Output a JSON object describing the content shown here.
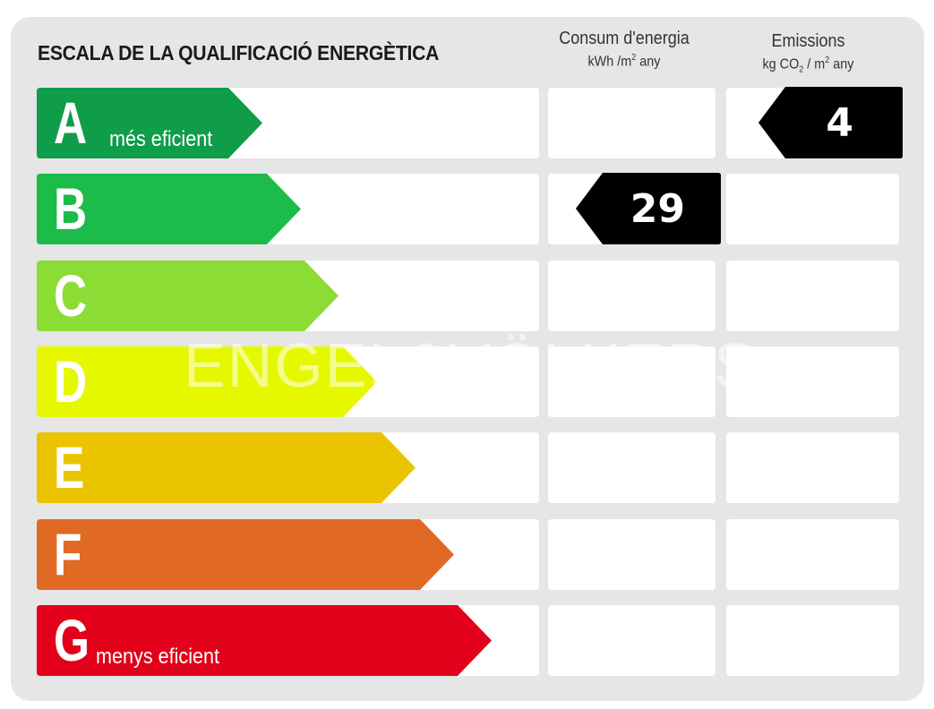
{
  "title": "ESCALA DE LA QUALIFICACIÓ ENERGÈTICA",
  "columns": {
    "consumption": {
      "label": "Consum d'energia",
      "unit_prefix": "kWh /m",
      "unit_sup": "2",
      "unit_suffix": " any"
    },
    "emissions": {
      "label": "Emissions",
      "unit_prefix": "kg CO",
      "unit_sub": "2",
      "unit_mid": " / m",
      "unit_sup": "2",
      "unit_suffix": " any"
    }
  },
  "ratings": [
    {
      "letter": "A",
      "subtitle": "més eficient",
      "color": "#0f9d4a"
    },
    {
      "letter": "B",
      "subtitle": "",
      "color": "#1dbb4a"
    },
    {
      "letter": "C",
      "subtitle": "",
      "color": "#8bdc34"
    },
    {
      "letter": "D",
      "subtitle": "",
      "color": "#e6f800"
    },
    {
      "letter": "E",
      "subtitle": "",
      "color": "#eac400"
    },
    {
      "letter": "F",
      "subtitle": "",
      "color": "#e06a24"
    },
    {
      "letter": "G",
      "subtitle": "menys eficient",
      "color": "#e2001a"
    }
  ],
  "consumption_rating": {
    "letter": "B",
    "value": "29"
  },
  "emissions_rating": {
    "letter": "A",
    "value": "4"
  },
  "watermark": "ENGEL&VÖLKERS",
  "marker_color": "#000000"
}
